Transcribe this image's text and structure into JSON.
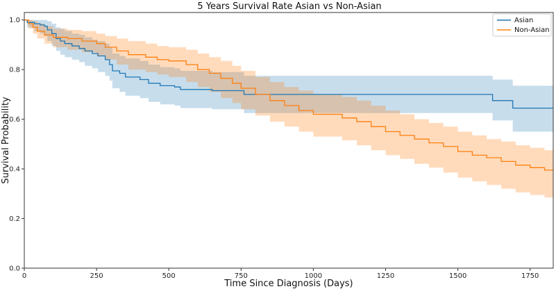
{
  "chart_data": {
    "type": "line",
    "subtype": "kaplan-meier-step-with-confidence-bands",
    "title": "5 Years Survival Rate Asian vs Non-Asian",
    "xlabel": "Time Since Diagnosis (Days)",
    "ylabel": "Survival Probability",
    "xlim": [
      0,
      1830
    ],
    "ylim": [
      0,
      1.03
    ],
    "xticks": [
      0,
      250,
      500,
      750,
      1000,
      1250,
      1500,
      1750
    ],
    "yticks": [
      0.0,
      0.2,
      0.4,
      0.6,
      0.8,
      1.0
    ],
    "xtick_labels": [
      "0",
      "250",
      "500",
      "750",
      "1000",
      "1250",
      "1500",
      "1750"
    ],
    "ytick_labels": [
      "0.0",
      "0.2",
      "0.4",
      "0.6",
      "0.8",
      "1.0"
    ],
    "grid": false,
    "legend_position": "top-right",
    "series": [
      {
        "name": "Asian",
        "color": "#1f77b4",
        "band_color": "#1f77b4",
        "x": [
          0,
          10,
          35,
          55,
          70,
          80,
          95,
          110,
          125,
          140,
          165,
          190,
          210,
          235,
          255,
          280,
          295,
          305,
          330,
          350,
          400,
          430,
          470,
          520,
          540,
          650,
          760,
          980,
          1620,
          1690,
          1830
        ],
        "y": [
          1.0,
          0.99,
          0.985,
          0.98,
          0.975,
          0.96,
          0.945,
          0.925,
          0.915,
          0.905,
          0.895,
          0.885,
          0.875,
          0.865,
          0.855,
          0.84,
          0.82,
          0.795,
          0.785,
          0.77,
          0.76,
          0.745,
          0.735,
          0.73,
          0.72,
          0.715,
          0.7,
          0.7,
          0.675,
          0.645,
          0.645
        ],
        "lower": [
          1.0,
          0.97,
          0.955,
          0.945,
          0.935,
          0.915,
          0.895,
          0.875,
          0.86,
          0.85,
          0.84,
          0.83,
          0.815,
          0.805,
          0.79,
          0.775,
          0.755,
          0.725,
          0.71,
          0.695,
          0.685,
          0.67,
          0.66,
          0.655,
          0.645,
          0.64,
          0.625,
          0.625,
          0.595,
          0.55,
          0.55
        ],
        "upper": [
          1.0,
          1.0,
          1.0,
          1.0,
          1.0,
          0.995,
          0.985,
          0.97,
          0.965,
          0.955,
          0.945,
          0.94,
          0.93,
          0.92,
          0.915,
          0.905,
          0.89,
          0.865,
          0.855,
          0.845,
          0.835,
          0.82,
          0.81,
          0.805,
          0.795,
          0.79,
          0.775,
          0.775,
          0.76,
          0.735,
          0.735
        ]
      },
      {
        "name": "Non-Asian",
        "color": "#ff7f0e",
        "band_color": "#ff7f0e",
        "x": [
          0,
          15,
          30,
          45,
          70,
          100,
          150,
          200,
          250,
          280,
          320,
          360,
          420,
          460,
          500,
          560,
          600,
          640,
          680,
          720,
          750,
          800,
          850,
          900,
          950,
          1000,
          1100,
          1150,
          1200,
          1250,
          1300,
          1350,
          1400,
          1450,
          1500,
          1550,
          1600,
          1650,
          1700,
          1750,
          1800,
          1830
        ],
        "y": [
          1.0,
          0.985,
          0.97,
          0.955,
          0.94,
          0.93,
          0.925,
          0.915,
          0.905,
          0.89,
          0.875,
          0.86,
          0.85,
          0.84,
          0.835,
          0.82,
          0.8,
          0.785,
          0.765,
          0.745,
          0.725,
          0.7,
          0.675,
          0.655,
          0.635,
          0.62,
          0.605,
          0.59,
          0.57,
          0.55,
          0.535,
          0.52,
          0.505,
          0.49,
          0.47,
          0.455,
          0.445,
          0.43,
          0.415,
          0.405,
          0.395,
          0.395
        ],
        "lower": [
          1.0,
          0.965,
          0.945,
          0.925,
          0.905,
          0.89,
          0.88,
          0.87,
          0.855,
          0.84,
          0.82,
          0.8,
          0.79,
          0.78,
          0.77,
          0.75,
          0.73,
          0.71,
          0.685,
          0.665,
          0.64,
          0.615,
          0.59,
          0.57,
          0.55,
          0.53,
          0.515,
          0.495,
          0.475,
          0.455,
          0.44,
          0.42,
          0.405,
          0.385,
          0.365,
          0.35,
          0.335,
          0.32,
          0.305,
          0.295,
          0.285,
          0.285
        ],
        "upper": [
          1.0,
          1.0,
          0.995,
          0.985,
          0.975,
          0.965,
          0.96,
          0.955,
          0.945,
          0.935,
          0.925,
          0.915,
          0.905,
          0.895,
          0.89,
          0.88,
          0.865,
          0.85,
          0.835,
          0.815,
          0.795,
          0.77,
          0.75,
          0.73,
          0.715,
          0.7,
          0.69,
          0.675,
          0.655,
          0.635,
          0.62,
          0.6,
          0.585,
          0.57,
          0.55,
          0.535,
          0.52,
          0.51,
          0.495,
          0.485,
          0.475,
          0.475
        ]
      }
    ]
  }
}
